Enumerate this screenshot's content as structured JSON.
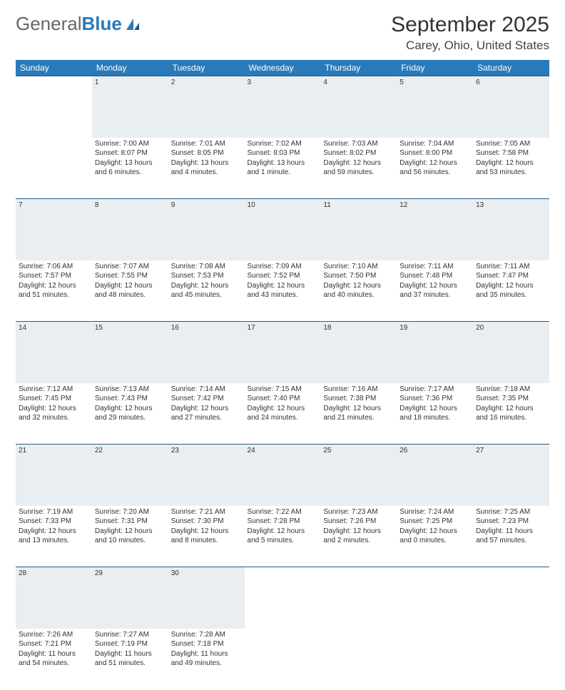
{
  "logo": {
    "text1": "General",
    "text2": "Blue"
  },
  "title": "September 2025",
  "location": "Carey, Ohio, United States",
  "colors": {
    "header_bg": "#2a7ab9",
    "header_text": "#ffffff",
    "daynum_bg": "#e8eef2",
    "row_border": "#2a5a80",
    "body_text": "#333333",
    "page_bg": "#ffffff"
  },
  "typography": {
    "title_fontsize": 30,
    "location_fontsize": 17,
    "dayheader_fontsize": 12,
    "cell_fontsize": 10
  },
  "day_headers": [
    "Sunday",
    "Monday",
    "Tuesday",
    "Wednesday",
    "Thursday",
    "Friday",
    "Saturday"
  ],
  "weeks": [
    {
      "nums": [
        "",
        "1",
        "2",
        "3",
        "4",
        "5",
        "6"
      ],
      "cells": [
        {
          "empty": true
        },
        {
          "sunrise": "7:00 AM",
          "sunset": "8:07 PM",
          "daylight": "13 hours and 6 minutes."
        },
        {
          "sunrise": "7:01 AM",
          "sunset": "8:05 PM",
          "daylight": "13 hours and 4 minutes."
        },
        {
          "sunrise": "7:02 AM",
          "sunset": "8:03 PM",
          "daylight": "13 hours and 1 minute."
        },
        {
          "sunrise": "7:03 AM",
          "sunset": "8:02 PM",
          "daylight": "12 hours and 59 minutes."
        },
        {
          "sunrise": "7:04 AM",
          "sunset": "8:00 PM",
          "daylight": "12 hours and 56 minutes."
        },
        {
          "sunrise": "7:05 AM",
          "sunset": "7:58 PM",
          "daylight": "12 hours and 53 minutes."
        }
      ]
    },
    {
      "nums": [
        "7",
        "8",
        "9",
        "10",
        "11",
        "12",
        "13"
      ],
      "cells": [
        {
          "sunrise": "7:06 AM",
          "sunset": "7:57 PM",
          "daylight": "12 hours and 51 minutes."
        },
        {
          "sunrise": "7:07 AM",
          "sunset": "7:55 PM",
          "daylight": "12 hours and 48 minutes."
        },
        {
          "sunrise": "7:08 AM",
          "sunset": "7:53 PM",
          "daylight": "12 hours and 45 minutes."
        },
        {
          "sunrise": "7:09 AM",
          "sunset": "7:52 PM",
          "daylight": "12 hours and 43 minutes."
        },
        {
          "sunrise": "7:10 AM",
          "sunset": "7:50 PM",
          "daylight": "12 hours and 40 minutes."
        },
        {
          "sunrise": "7:11 AM",
          "sunset": "7:48 PM",
          "daylight": "12 hours and 37 minutes."
        },
        {
          "sunrise": "7:11 AM",
          "sunset": "7:47 PM",
          "daylight": "12 hours and 35 minutes."
        }
      ]
    },
    {
      "nums": [
        "14",
        "15",
        "16",
        "17",
        "18",
        "19",
        "20"
      ],
      "cells": [
        {
          "sunrise": "7:12 AM",
          "sunset": "7:45 PM",
          "daylight": "12 hours and 32 minutes."
        },
        {
          "sunrise": "7:13 AM",
          "sunset": "7:43 PM",
          "daylight": "12 hours and 29 minutes."
        },
        {
          "sunrise": "7:14 AM",
          "sunset": "7:42 PM",
          "daylight": "12 hours and 27 minutes."
        },
        {
          "sunrise": "7:15 AM",
          "sunset": "7:40 PM",
          "daylight": "12 hours and 24 minutes."
        },
        {
          "sunrise": "7:16 AM",
          "sunset": "7:38 PM",
          "daylight": "12 hours and 21 minutes."
        },
        {
          "sunrise": "7:17 AM",
          "sunset": "7:36 PM",
          "daylight": "12 hours and 18 minutes."
        },
        {
          "sunrise": "7:18 AM",
          "sunset": "7:35 PM",
          "daylight": "12 hours and 16 minutes."
        }
      ]
    },
    {
      "nums": [
        "21",
        "22",
        "23",
        "24",
        "25",
        "26",
        "27"
      ],
      "cells": [
        {
          "sunrise": "7:19 AM",
          "sunset": "7:33 PM",
          "daylight": "12 hours and 13 minutes."
        },
        {
          "sunrise": "7:20 AM",
          "sunset": "7:31 PM",
          "daylight": "12 hours and 10 minutes."
        },
        {
          "sunrise": "7:21 AM",
          "sunset": "7:30 PM",
          "daylight": "12 hours and 8 minutes."
        },
        {
          "sunrise": "7:22 AM",
          "sunset": "7:28 PM",
          "daylight": "12 hours and 5 minutes."
        },
        {
          "sunrise": "7:23 AM",
          "sunset": "7:26 PM",
          "daylight": "12 hours and 2 minutes."
        },
        {
          "sunrise": "7:24 AM",
          "sunset": "7:25 PM",
          "daylight": "12 hours and 0 minutes."
        },
        {
          "sunrise": "7:25 AM",
          "sunset": "7:23 PM",
          "daylight": "11 hours and 57 minutes."
        }
      ]
    },
    {
      "nums": [
        "28",
        "29",
        "30",
        "",
        "",
        "",
        ""
      ],
      "cells": [
        {
          "sunrise": "7:26 AM",
          "sunset": "7:21 PM",
          "daylight": "11 hours and 54 minutes."
        },
        {
          "sunrise": "7:27 AM",
          "sunset": "7:19 PM",
          "daylight": "11 hours and 51 minutes."
        },
        {
          "sunrise": "7:28 AM",
          "sunset": "7:18 PM",
          "daylight": "11 hours and 49 minutes."
        },
        {
          "empty": true
        },
        {
          "empty": true
        },
        {
          "empty": true
        },
        {
          "empty": true
        }
      ]
    }
  ],
  "labels": {
    "sunrise_prefix": "Sunrise: ",
    "sunset_prefix": "Sunset: ",
    "daylight_prefix": "Daylight: "
  }
}
